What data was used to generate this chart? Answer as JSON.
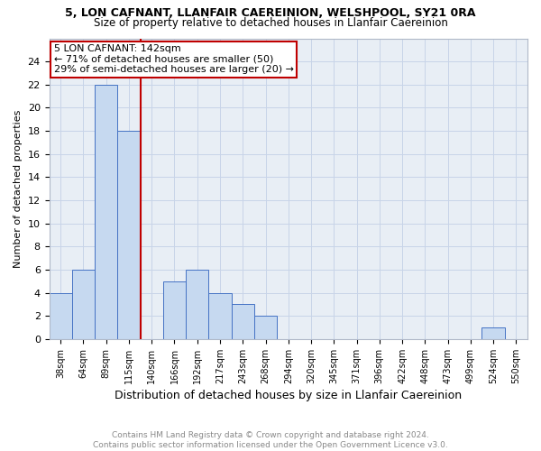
{
  "title1": "5, LON CAFNANT, LLANFAIR CAEREINION, WELSHPOOL, SY21 0RA",
  "title2": "Size of property relative to detached houses in Llanfair Caereinion",
  "xlabel": "Distribution of detached houses by size in Llanfair Caereinion",
  "ylabel": "Number of detached properties",
  "footnote": "Contains HM Land Registry data © Crown copyright and database right 2024.\nContains public sector information licensed under the Open Government Licence v3.0.",
  "categories": [
    "38sqm",
    "64sqm",
    "89sqm",
    "115sqm",
    "140sqm",
    "166sqm",
    "192sqm",
    "217sqm",
    "243sqm",
    "268sqm",
    "294sqm",
    "320sqm",
    "345sqm",
    "371sqm",
    "396sqm",
    "422sqm",
    "448sqm",
    "473sqm",
    "499sqm",
    "524sqm",
    "550sqm"
  ],
  "values": [
    4,
    6,
    22,
    18,
    0,
    5,
    6,
    4,
    3,
    2,
    0,
    0,
    0,
    0,
    0,
    0,
    0,
    0,
    0,
    1,
    0
  ],
  "bar_color": "#c6d9f0",
  "bar_edge_color": "#4472c4",
  "vline_color": "#c00000",
  "annotation_text": "5 LON CAFNANT: 142sqm\n← 71% of detached houses are smaller (50)\n29% of semi-detached houses are larger (20) →",
  "annotation_box_color": "#c00000",
  "ylim": [
    0,
    26
  ],
  "yticks": [
    0,
    2,
    4,
    6,
    8,
    10,
    12,
    14,
    16,
    18,
    20,
    22,
    24
  ],
  "grid_color": "#c8d4e8",
  "background_color": "#e8eef5"
}
